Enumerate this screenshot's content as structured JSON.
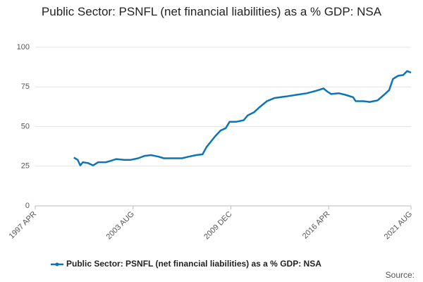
{
  "chart_data": {
    "type": "line",
    "title": "Public Sector: PSNFL (net financial liabilities) as a % GDP: NSA",
    "source": "Source:",
    "x": [
      "1999-10",
      "2000-01",
      "2000-03",
      "2000-05",
      "2000-09",
      "2001-01",
      "2001-05",
      "2001-11",
      "2002-03",
      "2002-07",
      "2003-01",
      "2003-06",
      "2003-12",
      "2004-05",
      "2004-10",
      "2005-04",
      "2005-08",
      "2006-03",
      "2006-10",
      "2007-03",
      "2007-09",
      "2008-02",
      "2008-05",
      "2008-08",
      "2008-12",
      "2009-04",
      "2009-08",
      "2009-11",
      "2010-04",
      "2010-10",
      "2011-01",
      "2011-06",
      "2011-10",
      "2012-04",
      "2012-10",
      "2013-07",
      "2014-03",
      "2014-11",
      "2015-06",
      "2015-12",
      "2016-03",
      "2016-06",
      "2016-12",
      "2017-05",
      "2017-11",
      "2018-01",
      "2018-07",
      "2018-12",
      "2019-06",
      "2019-11",
      "2020-03",
      "2020-06",
      "2020-10",
      "2021-02",
      "2021-05",
      "2021-08"
    ],
    "series": [
      {
        "name": "Public Sector: PSNFL (net financial liabilities) as a % GDP: NSA",
        "color": "#0b75b5",
        "values": [
          30.5,
          29,
          25.5,
          27.5,
          27,
          25.5,
          27.5,
          27.5,
          28.5,
          29.5,
          29,
          29,
          30,
          31.5,
          32,
          31,
          30,
          30,
          30,
          31,
          32,
          32.5,
          37,
          40,
          44,
          47.5,
          49,
          53,
          53,
          54,
          57,
          59,
          62,
          66,
          68,
          69,
          70,
          71,
          72.5,
          74,
          72,
          70.5,
          71,
          70,
          68.5,
          66,
          66,
          65.5,
          66.5,
          70,
          73,
          80,
          82,
          82.5,
          85,
          84
        ]
      }
    ],
    "xlim": [
      "1997-04",
      "2021-08"
    ],
    "xticks": [
      {
        "value": "1997-04",
        "label": "1997 APR"
      },
      {
        "value": "2003-08",
        "label": "2003 AUG"
      },
      {
        "value": "2009-12",
        "label": "2009 DEC"
      },
      {
        "value": "2016-04",
        "label": "2016 APR"
      },
      {
        "value": "2021-08",
        "label": "2021 AUG"
      }
    ],
    "ylim": [
      0,
      100
    ],
    "yticks": [
      0,
      25,
      50,
      75,
      100
    ],
    "grid": true,
    "legend": "bottom"
  }
}
